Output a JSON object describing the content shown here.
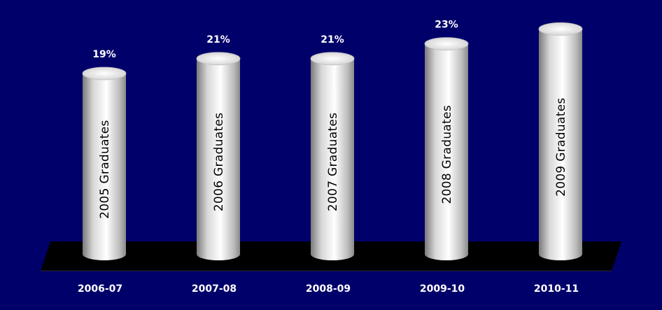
{
  "chart_data": {
    "type": "bar",
    "style": "3d-cylinder",
    "title": "",
    "xlabel": "",
    "ylabel": "",
    "categories": [
      "2006-07",
      "2007-08",
      "2008-09",
      "2009-10",
      "2010-11"
    ],
    "series": [
      {
        "values": [
          19,
          21,
          21,
          23,
          25
        ],
        "value_labels": [
          "19%",
          "21%",
          "21%",
          "23%",
          ""
        ],
        "bar_labels": [
          "2005 Graduates",
          "2006 Graduates",
          "2007 Graduates",
          "2008 Graduates",
          "2009 Graduates"
        ]
      }
    ],
    "ylim": [
      0,
      26
    ],
    "grid": false,
    "legend": "none",
    "colors": {
      "background": "#00006b",
      "floor": "#000000",
      "bar_light": "#ffffff",
      "bar_dark": "#8a8a8a",
      "text": "#ffffff"
    }
  }
}
